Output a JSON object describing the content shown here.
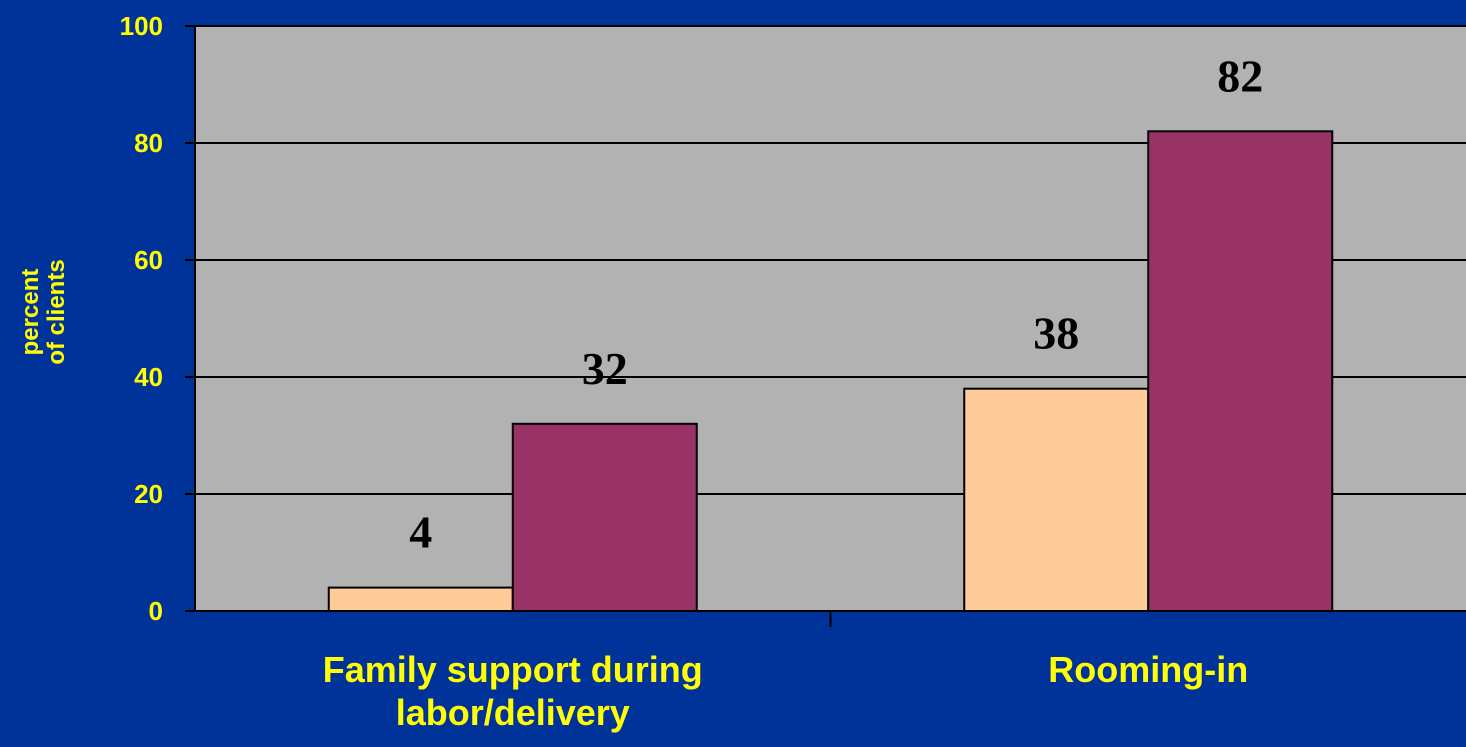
{
  "colors": {
    "background": "#003399",
    "plot_area": "#b2b2b2",
    "text_accent": "#ffff00",
    "series_1": "#ffcc99",
    "series_2": "#993366",
    "data_label": "#000000"
  },
  "chart_data": {
    "type": "bar",
    "title": "",
    "categories": [
      "Family support during labor/delivery",
      "Rooming-in"
    ],
    "category_lines": [
      [
        "Family support during",
        "labor/delivery"
      ],
      [
        "Rooming-in"
      ]
    ],
    "series": [
      {
        "values": [
          4,
          38
        ]
      },
      {
        "values": [
          32,
          82
        ]
      }
    ],
    "ylabel_lines": [
      "percent",
      "of clients"
    ],
    "ylim": [
      0,
      100
    ],
    "yticks": [
      0,
      20,
      40,
      60,
      80,
      100
    ],
    "grid": true,
    "legend": "none",
    "data_labels": true
  }
}
